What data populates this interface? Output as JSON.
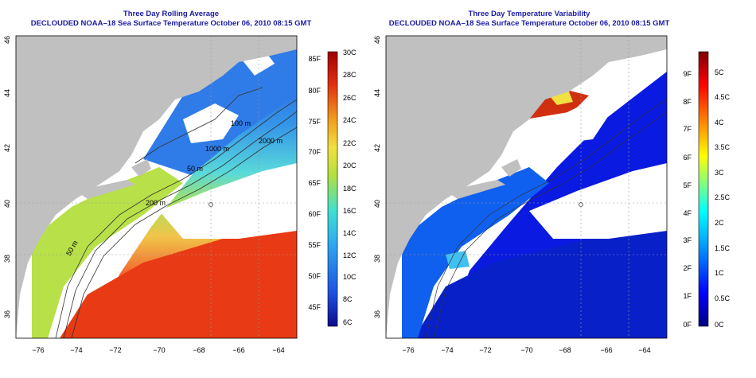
{
  "panels": [
    {
      "title": "Three Day Rolling Average",
      "subtitle": "DECLOUDED NOAA–18 Sea Surface Temperature October 06, 2010 08:15 GMT",
      "colorbar_f": [
        "85F",
        "80F",
        "75F",
        "70F",
        "65F",
        "60F",
        "55F",
        "50F",
        "45F"
      ],
      "colorbar_c": [
        "30C",
        "28C",
        "26C",
        "24C",
        "22C",
        "20C",
        "18C",
        "16C",
        "14C",
        "12C",
        "10C",
        "8C",
        "6C"
      ],
      "contour_labels": [
        "100 m",
        "1000 m",
        "2000 m",
        "50 m",
        "200 m",
        "50 m"
      ]
    },
    {
      "title": "Three Day Temperature Variability",
      "subtitle": "DECLOUDED NOAA–18 Sea Surface Temperature October 06, 2010 08:15 GMT",
      "colorbar_f": [
        "9F",
        "8F",
        "7F",
        "6F",
        "5F",
        "4F",
        "3F",
        "2F",
        "1F",
        "0F"
      ],
      "colorbar_c": [
        "5C",
        "4.5C",
        "4C",
        "3.5C",
        "3C",
        "2.5C",
        "2C",
        "1.5C",
        "1C",
        "0.5C",
        "0C"
      ],
      "contour_labels": []
    }
  ],
  "axes": {
    "x_ticks": [
      "−76",
      "−74",
      "−72",
      "−70",
      "−68",
      "−66",
      "−64"
    ],
    "y_ticks": [
      "36",
      "38",
      "40",
      "42",
      "44",
      "46"
    ]
  },
  "colors": {
    "title": "#1a1aa6",
    "land": "#c0c0c0",
    "sst_ramp": [
      "#0a0a8c",
      "#1e50e0",
      "#2fa8f0",
      "#40e0d0",
      "#b4e040",
      "#f0e040",
      "#f0a020",
      "#e03010",
      "#a00000"
    ],
    "var_ramp": [
      "#000080",
      "#0000ff",
      "#00a0ff",
      "#00ffff",
      "#80ff80",
      "#ffff00",
      "#ff8000",
      "#ff0000",
      "#800000"
    ]
  }
}
